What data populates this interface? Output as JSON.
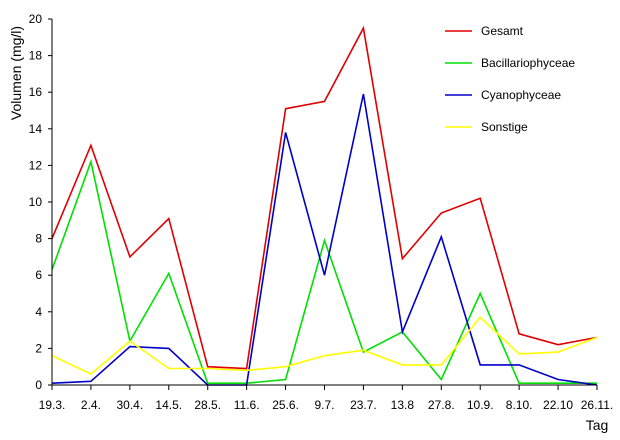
{
  "chart_data": {
    "type": "line",
    "xlabel": "Tag",
    "ylabel": "Volumen (mg/l)",
    "ylim": [
      0,
      20
    ],
    "yticks": [
      0,
      2,
      4,
      6,
      8,
      10,
      12,
      14,
      16,
      18,
      20
    ],
    "grid": false,
    "legend_position": "top-right",
    "categories": [
      "19.3.",
      "2.4.",
      "30.4.",
      "14.5.",
      "28.5.",
      "11.6.",
      "25.6.",
      "9.7.",
      "23.7.",
      "13.8",
      "27.8.",
      "10.9.",
      "8.10.",
      "22.10",
      "26.11."
    ],
    "series": [
      {
        "name": "Gesamt",
        "color": "#e00000",
        "values": [
          8.0,
          13.1,
          7.0,
          9.1,
          1.0,
          0.9,
          15.1,
          15.5,
          19.5,
          6.9,
          9.4,
          10.2,
          2.8,
          2.2,
          2.6
        ]
      },
      {
        "name": "Bacillariophyceae",
        "color": "#00e000",
        "values": [
          6.3,
          12.2,
          2.4,
          6.1,
          0.1,
          0.1,
          0.3,
          7.9,
          1.8,
          2.9,
          0.3,
          5.0,
          0.1,
          0.1,
          0.1
        ]
      },
      {
        "name": "Cyanophyceae",
        "color": "#0000c8",
        "values": [
          0.1,
          0.2,
          2.1,
          2.0,
          0.0,
          0.0,
          13.8,
          6.0,
          15.9,
          2.9,
          8.1,
          1.1,
          1.1,
          0.3,
          0.0
        ]
      },
      {
        "name": "Sonstige",
        "color": "#ffff00",
        "values": [
          1.6,
          0.6,
          2.4,
          0.9,
          0.9,
          0.8,
          1.0,
          1.6,
          1.9,
          1.1,
          1.1,
          3.7,
          1.7,
          1.8,
          2.6
        ]
      }
    ]
  }
}
